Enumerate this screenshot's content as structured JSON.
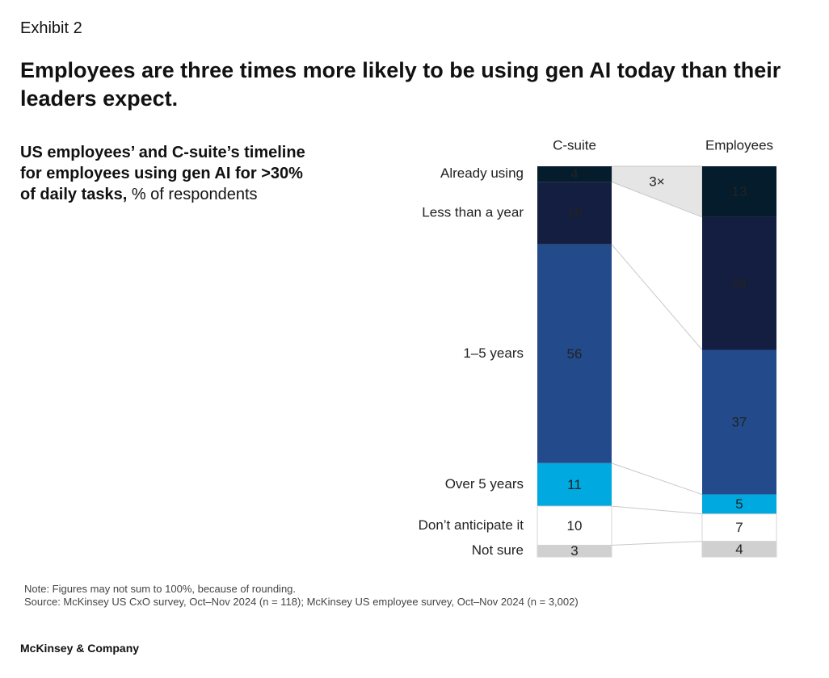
{
  "exhibit": "Exhibit 2",
  "title": "Employees are three times more likely to be using gen AI today than their leaders expect.",
  "note": "Note: Figures may not sum to 100%, because of rounding.",
  "source": "Source: McKinsey US CxO survey, Oct–Nov 2024 (n = 118); McKinsey US employee survey, Oct–Nov 2024 (n = 3,002)",
  "footer": "McKinsey & Company",
  "chart_data": {
    "type": "stacked_bar",
    "subtitle": "US employees’ and C-suite’s timeline for employees using gen AI for >30% of daily tasks,",
    "unit_label": "% of respondents",
    "annotation": "3×",
    "categories": [
      "C-suite",
      "Employees"
    ],
    "series": [
      {
        "name": "Already using",
        "color": "#051c2c",
        "values": [
          4,
          13
        ]
      },
      {
        "name": "Less than a year",
        "color": "#141e40",
        "values": [
          16,
          34
        ]
      },
      {
        "name": "1–5 years",
        "color": "#234b8c",
        "values": [
          56,
          37
        ]
      },
      {
        "name": "Over 5 years",
        "color": "#00a9df",
        "values": [
          11,
          5
        ]
      },
      {
        "name": "Don’t anticipate it",
        "color": "#ffffff",
        "values": [
          10,
          7
        ]
      },
      {
        "name": "Not sure",
        "color": "#d0d0d0",
        "values": [
          3,
          4
        ]
      }
    ]
  }
}
